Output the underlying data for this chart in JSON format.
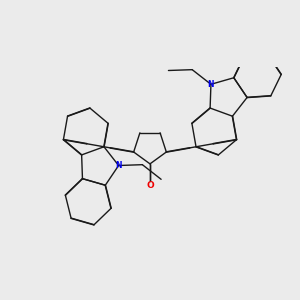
{
  "bg_color": "#ebebeb",
  "bond_color": "#1a1a1a",
  "N_color": "#0000ee",
  "O_color": "#ee0000",
  "lw": 1.0,
  "dbo": 0.012,
  "figsize": [
    3.0,
    3.0
  ],
  "dpi": 100,
  "xlim": [
    -4.5,
    4.5
  ],
  "ylim": [
    -2.5,
    2.5
  ]
}
